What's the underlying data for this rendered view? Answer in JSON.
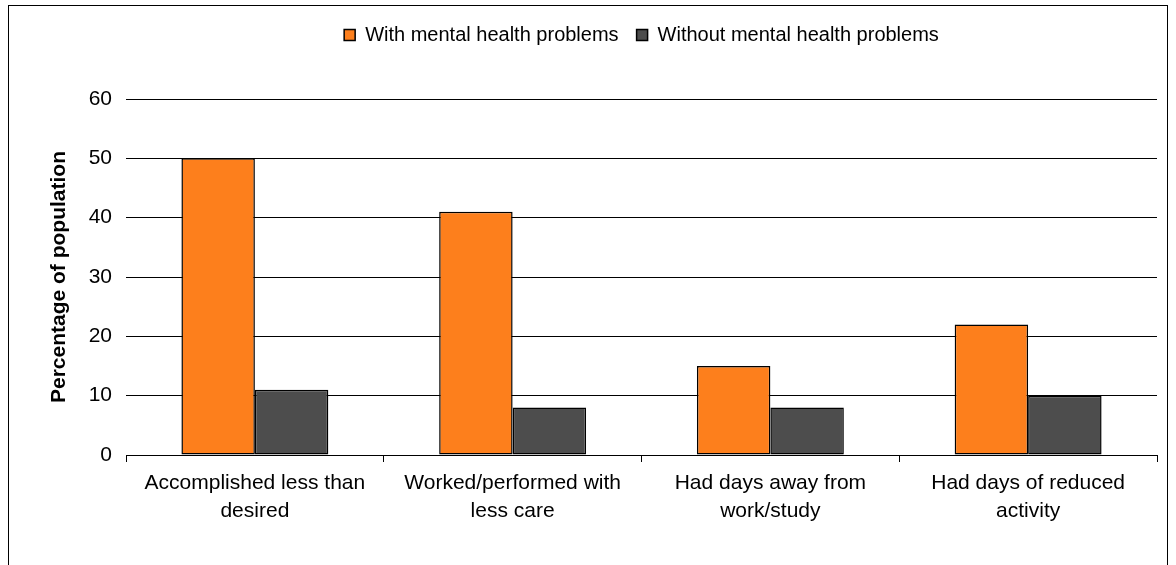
{
  "chart_data": {
    "type": "bar",
    "categories": [
      "Accomplished less than desired",
      "Worked/performed with less care",
      "Had days away from work/study",
      "Had days of reduced activity"
    ],
    "series": [
      {
        "name": "With mental health problems",
        "color": "#fd7f1c",
        "values": [
          50,
          41,
          15,
          22
        ]
      },
      {
        "name": "Without mental health problems",
        "color": "#4d4d4d",
        "values": [
          11,
          8,
          8,
          10
        ]
      }
    ],
    "ylabel": "Percentage of population",
    "ylim": [
      0,
      60
    ],
    "yticks": [
      0,
      10,
      20,
      30,
      40,
      50,
      60
    ],
    "grid": "y",
    "legend": "top"
  }
}
